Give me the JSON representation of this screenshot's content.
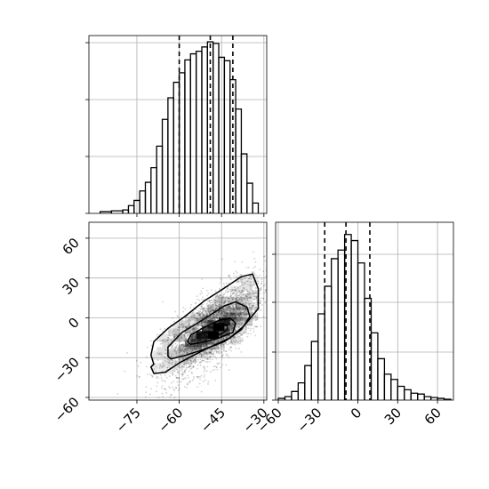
{
  "chart_data": {
    "type": "corner",
    "title": "",
    "xlabel": "",
    "ylabel": "",
    "grid": true,
    "panels": [
      {
        "name": "x-histogram",
        "type": "histogram",
        "xlim": [
          -92,
          -29
        ],
        "ylim": [
          0,
          1
        ],
        "bins": [
          [
            -88,
            -84
          ],
          [
            -84,
            -80
          ],
          [
            -80,
            -78
          ],
          [
            -78,
            -76
          ],
          [
            -76,
            -74
          ],
          [
            -74,
            -72
          ],
          [
            -72,
            -70
          ],
          [
            -70,
            -68
          ],
          [
            -68,
            -66
          ],
          [
            -66,
            -64
          ],
          [
            -64,
            -62
          ],
          [
            -62,
            -60
          ],
          [
            -60,
            -58
          ],
          [
            -58,
            -56
          ],
          [
            -56,
            -54
          ],
          [
            -54,
            -52
          ],
          [
            -52,
            -50
          ],
          [
            -50,
            -48
          ],
          [
            -48,
            -46
          ],
          [
            -46,
            -44
          ],
          [
            -44,
            -42
          ],
          [
            -42,
            -40
          ],
          [
            -40,
            -38
          ],
          [
            -38,
            -36
          ],
          [
            -36,
            -34
          ],
          [
            -34,
            -32
          ]
        ],
        "values": [
          0.01,
          0.015,
          0.02,
          0.045,
          0.075,
          0.13,
          0.18,
          0.265,
          0.39,
          0.545,
          0.67,
          0.76,
          0.815,
          0.89,
          0.925,
          0.94,
          0.965,
          0.995,
          0.985,
          0.905,
          0.885,
          0.775,
          0.605,
          0.345,
          0.175,
          0.06
        ],
        "quantiles": [
          -60,
          -49,
          -41
        ]
      },
      {
        "name": "joint-2d",
        "type": "2d-histogram-contour",
        "xlim": [
          -92,
          -29
        ],
        "ylim": [
          -62,
          72
        ],
        "x_ticks": [
          -75,
          -60,
          -45,
          -30
        ],
        "y_ticks": [
          -60,
          -30,
          0,
          30,
          60
        ],
        "contours": [
          [
            [
              -69,
              -35
            ],
            [
              -70,
              -28
            ],
            [
              -69,
              -18
            ],
            [
              -64,
              -8
            ],
            [
              -58,
              1
            ],
            [
              -51,
              13
            ],
            [
              -45,
              21
            ],
            [
              -38,
              31
            ],
            [
              -34,
              33
            ],
            [
              -32,
              22
            ],
            [
              -32,
              7
            ],
            [
              -37,
              -6
            ],
            [
              -42,
              -15
            ],
            [
              -52,
              -25
            ],
            [
              -60,
              -34
            ],
            [
              -65,
              -41
            ],
            [
              -69,
              -42
            ],
            [
              -70,
              -37
            ]
          ],
          [
            [
              -64,
              -29
            ],
            [
              -64,
              -22
            ],
            [
              -59,
              -11
            ],
            [
              -52,
              -2
            ],
            [
              -44,
              9
            ],
            [
              -40,
              12
            ],
            [
              -36,
              8
            ],
            [
              -35,
              1
            ],
            [
              -38,
              -9
            ],
            [
              -44,
              -18
            ],
            [
              -53,
              -25
            ],
            [
              -59,
              -29
            ],
            [
              -63,
              -31
            ]
          ],
          [
            [
              -57,
              -18
            ],
            [
              -56,
              -13
            ],
            [
              -51,
              -7
            ],
            [
              -46,
              -2
            ],
            [
              -42,
              0
            ],
            [
              -40,
              -4
            ],
            [
              -41,
              -11
            ],
            [
              -47,
              -16
            ],
            [
              -53,
              -19
            ],
            [
              -56,
              -20
            ]
          ],
          [
            [
              -49,
              -13
            ],
            [
              -47,
              -9
            ],
            [
              -45,
              -6
            ],
            [
              -43,
              -6
            ],
            [
              -43,
              -9
            ],
            [
              -45,
              -12
            ],
            [
              -48,
              -14
            ]
          ]
        ],
        "heat_cells": [
          {
            "x": -52,
            "y": -13,
            "v": 0.85
          },
          {
            "x": -48,
            "y": -13,
            "v": 1.0
          },
          {
            "x": -46,
            "y": -7,
            "v": 1.0
          },
          {
            "x": -44,
            "y": -3,
            "v": 0.85
          },
          {
            "x": -50,
            "y": -9,
            "v": 0.7
          },
          {
            "x": -54,
            "y": -15,
            "v": 0.55
          },
          {
            "x": -48,
            "y": -5,
            "v": 0.6
          },
          {
            "x": -42,
            "y": 1,
            "v": 0.5
          },
          {
            "x": -56,
            "y": -19,
            "v": 0.45
          },
          {
            "x": -52,
            "y": -19,
            "v": 0.5
          },
          {
            "x": -44,
            "y": -11,
            "v": 0.5
          },
          {
            "x": -42,
            "y": -7,
            "v": 0.4
          },
          {
            "x": -58,
            "y": -23,
            "v": 0.3
          },
          {
            "x": -54,
            "y": -21,
            "v": 0.35
          },
          {
            "x": -50,
            "y": -17,
            "v": 0.4
          },
          {
            "x": -46,
            "y": -15,
            "v": 0.3
          },
          {
            "x": -50,
            "y": -1,
            "v": 0.3
          },
          {
            "x": -46,
            "y": 3,
            "v": 0.3
          },
          {
            "x": -40,
            "y": 5,
            "v": 0.3
          },
          {
            "x": -40,
            "y": -3,
            "v": 0.3
          },
          {
            "x": -60,
            "y": -15,
            "v": 0.25
          },
          {
            "x": -56,
            "y": -9,
            "v": 0.25
          },
          {
            "x": -52,
            "y": -3,
            "v": 0.25
          },
          {
            "x": -44,
            "y": 7,
            "v": 0.25
          },
          {
            "x": -38,
            "y": 9,
            "v": 0.25
          },
          {
            "x": -38,
            "y": 1,
            "v": 0.25
          },
          {
            "x": -62,
            "y": -27,
            "v": 0.2
          },
          {
            "x": -58,
            "y": -29,
            "v": 0.2
          },
          {
            "x": -54,
            "y": -25,
            "v": 0.2
          },
          {
            "x": -48,
            "y": -21,
            "v": 0.2
          },
          {
            "x": -42,
            "y": -13,
            "v": 0.2
          },
          {
            "x": -36,
            "y": -3,
            "v": 0.2
          },
          {
            "x": -36,
            "y": 5,
            "v": 0.18
          },
          {
            "x": -40,
            "y": 13,
            "v": 0.18
          },
          {
            "x": -44,
            "y": 13,
            "v": 0.15
          },
          {
            "x": -48,
            "y": 7,
            "v": 0.18
          },
          {
            "x": -54,
            "y": 1,
            "v": 0.15
          },
          {
            "x": -58,
            "y": -5,
            "v": 0.15
          },
          {
            "x": -62,
            "y": -11,
            "v": 0.15
          },
          {
            "x": -64,
            "y": -19,
            "v": 0.15
          },
          {
            "x": -66,
            "y": -25,
            "v": 0.12
          },
          {
            "x": -64,
            "y": -33,
            "v": 0.12
          },
          {
            "x": -60,
            "y": -35,
            "v": 0.12
          },
          {
            "x": -56,
            "y": -31,
            "v": 0.12
          },
          {
            "x": -50,
            "y": -25,
            "v": 0.12
          },
          {
            "x": -46,
            "y": -21,
            "v": 0.12
          },
          {
            "x": -40,
            "y": -17,
            "v": 0.12
          },
          {
            "x": -38,
            "y": -9,
            "v": 0.12
          },
          {
            "x": -34,
            "y": 1,
            "v": 0.12
          },
          {
            "x": -34,
            "y": 9,
            "v": 0.1
          },
          {
            "x": -36,
            "y": 15,
            "v": 0.12
          },
          {
            "x": -40,
            "y": 21,
            "v": 0.1
          },
          {
            "x": -36,
            "y": 23,
            "v": 0.1
          },
          {
            "x": -46,
            "y": 13,
            "v": 0.1
          },
          {
            "x": -50,
            "y": 5,
            "v": 0.1
          },
          {
            "x": -56,
            "y": -1,
            "v": 0.1
          },
          {
            "x": -60,
            "y": -7,
            "v": 0.1
          },
          {
            "x": -66,
            "y": -15,
            "v": 0.1
          },
          {
            "x": -68,
            "y": -29,
            "v": 0.1
          },
          {
            "x": -68,
            "y": -37,
            "v": 0.08
          },
          {
            "x": -64,
            "y": -39,
            "v": 0.08
          },
          {
            "x": -34,
            "y": 17,
            "v": 0.08
          },
          {
            "x": -34,
            "y": 27,
            "v": 0.08
          },
          {
            "x": -38,
            "y": 29,
            "v": 0.08
          }
        ],
        "scatter_cloud": {
          "mean": [
            -48,
            -8
          ],
          "sd": [
            9,
            19
          ],
          "rho": 0.72,
          "n": 2600
        }
      },
      {
        "name": "y-histogram",
        "type": "histogram",
        "xlim": [
          -62,
          72
        ],
        "ylim": [
          0,
          1
        ],
        "bins": [
          [
            -60,
            -55
          ],
          [
            -55,
            -50
          ],
          [
            -50,
            -45
          ],
          [
            -45,
            -40
          ],
          [
            -40,
            -35
          ],
          [
            -35,
            -30
          ],
          [
            -30,
            -25
          ],
          [
            -25,
            -20
          ],
          [
            -20,
            -15
          ],
          [
            -15,
            -10
          ],
          [
            -10,
            -5
          ],
          [
            -5,
            0
          ],
          [
            0,
            5
          ],
          [
            5,
            10
          ],
          [
            10,
            15
          ],
          [
            15,
            20
          ],
          [
            20,
            25
          ],
          [
            25,
            30
          ],
          [
            30,
            35
          ],
          [
            35,
            40
          ],
          [
            40,
            45
          ],
          [
            45,
            50
          ],
          [
            50,
            55
          ],
          [
            55,
            60
          ],
          [
            60,
            65
          ],
          [
            65,
            70
          ]
        ],
        "values": [
          0.01,
          0.02,
          0.05,
          0.1,
          0.2,
          0.34,
          0.5,
          0.66,
          0.82,
          0.87,
          0.96,
          0.925,
          0.795,
          0.59,
          0.39,
          0.24,
          0.15,
          0.12,
          0.08,
          0.06,
          0.04,
          0.035,
          0.02,
          0.015,
          0.01,
          0.005
        ],
        "quantiles": [
          -25,
          -9,
          9
        ]
      }
    ],
    "tick_labels": {
      "joint_x": [
        "−75",
        "−60",
        "−45",
        "−30"
      ],
      "joint_y": [
        "−60",
        "−30",
        "0",
        "30",
        "60"
      ],
      "marginal_y_x": [
        "−60",
        "−30",
        "0",
        "30",
        "60"
      ]
    },
    "colors": {
      "line": "#000000",
      "grid": "#b0b0b0",
      "scatter": "#000000"
    }
  }
}
